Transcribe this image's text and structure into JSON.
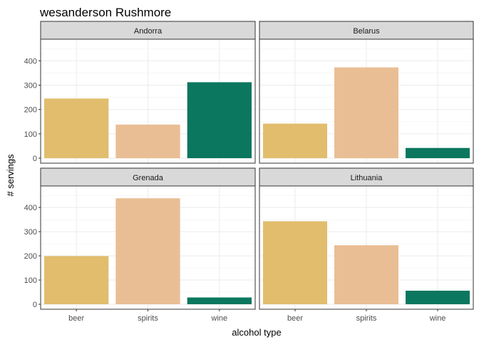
{
  "chart_data": {
    "type": "bar",
    "title": "wesanderson Rushmore",
    "xlabel": "alcohol type",
    "ylabel": "# servings",
    "categories": [
      "beer",
      "spirits",
      "wine"
    ],
    "colors": [
      "#E1BD6D",
      "#EABE94",
      "#0B775E"
    ],
    "ylim": [
      0,
      480
    ],
    "yticks": [
      0,
      100,
      200,
      300,
      400
    ],
    "grid": true,
    "facets": [
      {
        "name": "Andorra",
        "values": [
          245,
          138,
          312
        ]
      },
      {
        "name": "Belarus",
        "values": [
          142,
          373,
          42
        ]
      },
      {
        "name": "Grenada",
        "values": [
          199,
          438,
          28
        ]
      },
      {
        "name": "Lithuania",
        "values": [
          343,
          244,
          56
        ]
      }
    ]
  }
}
